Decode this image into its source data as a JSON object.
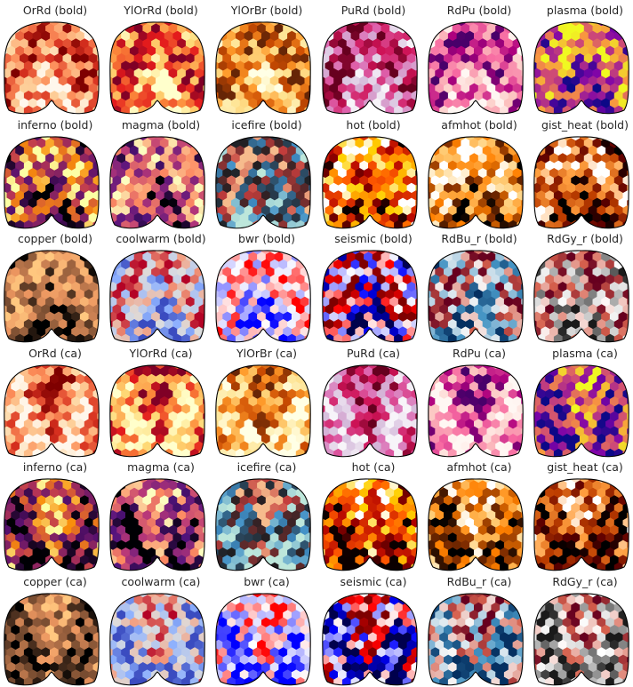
{
  "figure": {
    "panels": [
      {
        "title": "OrRd (bold)",
        "cmap": "OrRd"
      },
      {
        "title": "YlOrRd (bold)",
        "cmap": "YlOrRd"
      },
      {
        "title": "YlOrBr (bold)",
        "cmap": "YlOrBr"
      },
      {
        "title": "PuRd (bold)",
        "cmap": "PuRd"
      },
      {
        "title": "RdPu (bold)",
        "cmap": "RdPu"
      },
      {
        "title": "plasma (bold)",
        "cmap": "plasma"
      },
      {
        "title": "inferno (bold)",
        "cmap": "inferno"
      },
      {
        "title": "magma (bold)",
        "cmap": "magma"
      },
      {
        "title": "icefire (bold)",
        "cmap": "icefire"
      },
      {
        "title": "hot (bold)",
        "cmap": "hot"
      },
      {
        "title": "afmhot (bold)",
        "cmap": "afmhot"
      },
      {
        "title": "gist_heat (bold)",
        "cmap": "gist_heat"
      },
      {
        "title": "copper (bold)",
        "cmap": "copper"
      },
      {
        "title": "coolwarm (bold)",
        "cmap": "coolwarm"
      },
      {
        "title": "bwr (bold)",
        "cmap": "bwr"
      },
      {
        "title": "seismic (bold)",
        "cmap": "seismic"
      },
      {
        "title": "RdBu_r (bold)",
        "cmap": "RdBu_r"
      },
      {
        "title": "RdGy_r (bold)",
        "cmap": "RdGy_r"
      },
      {
        "title": "OrRd (ca)",
        "cmap": "OrRd"
      },
      {
        "title": "YlOrRd (ca)",
        "cmap": "YlOrRd"
      },
      {
        "title": "YlOrBr (ca)",
        "cmap": "YlOrBr"
      },
      {
        "title": "PuRd (ca)",
        "cmap": "PuRd"
      },
      {
        "title": "RdPu (ca)",
        "cmap": "RdPu"
      },
      {
        "title": "plasma (ca)",
        "cmap": "plasma"
      },
      {
        "title": "inferno (ca)",
        "cmap": "inferno"
      },
      {
        "title": "magma (ca)",
        "cmap": "magma"
      },
      {
        "title": "icefire (ca)",
        "cmap": "icefire"
      },
      {
        "title": "hot (ca)",
        "cmap": "hot"
      },
      {
        "title": "afmhot (ca)",
        "cmap": "afmhot"
      },
      {
        "title": "gist_heat (ca)",
        "cmap": "gist_heat"
      },
      {
        "title": "copper (ca)",
        "cmap": "copper"
      },
      {
        "title": "coolwarm (ca)",
        "cmap": "coolwarm"
      },
      {
        "title": "bwr (ca)",
        "cmap": "bwr"
      },
      {
        "title": "seismic (ca)",
        "cmap": "seismic"
      },
      {
        "title": "RdBu_r (ca)",
        "cmap": "RdBu_r"
      },
      {
        "title": "RdGy_r (ca)",
        "cmap": "RdGy_r"
      }
    ],
    "colormaps": {
      "OrRd": [
        "#fff7ec",
        "#fdd49e",
        "#fc8d59",
        "#d7301f",
        "#7f0000"
      ],
      "YlOrRd": [
        "#ffffcc",
        "#fed976",
        "#fd8d3c",
        "#e31a1c",
        "#800026"
      ],
      "YlOrBr": [
        "#ffffe5",
        "#fee391",
        "#fe9929",
        "#cc4c02",
        "#662506"
      ],
      "PuRd": [
        "#f7f4f9",
        "#d4b9da",
        "#df65b0",
        "#ce1256",
        "#67001f"
      ],
      "RdPu": [
        "#fff7f3",
        "#fcc5c0",
        "#f768a1",
        "#ae017e",
        "#49006a"
      ],
      "plasma": [
        "#0d0887",
        "#7e03a8",
        "#cc4778",
        "#f89540",
        "#f0f921"
      ],
      "inferno": [
        "#000004",
        "#57106e",
        "#bc3754",
        "#f98e09",
        "#fcffa4"
      ],
      "magma": [
        "#000004",
        "#51127c",
        "#b73779",
        "#fc8961",
        "#fcfdbf"
      ],
      "icefire": [
        "#bde7db",
        "#3f8ec6",
        "#1f1e21",
        "#c33d3c",
        "#f6bb8d"
      ],
      "hot": [
        "#0b0000",
        "#b00000",
        "#ff5800",
        "#ffd000",
        "#ffffff"
      ],
      "afmhot": [
        "#000000",
        "#7f2c00",
        "#ff8000",
        "#ffd27f",
        "#ffffff"
      ],
      "gist_heat": [
        "#000000",
        "#5f0000",
        "#bf3f00",
        "#ff9f3f",
        "#ffffff"
      ],
      "copper": [
        "#000000",
        "#4f3220",
        "#9e6440",
        "#ec9660",
        "#ffc77f"
      ],
      "coolwarm": [
        "#3b4cc0",
        "#8db0fe",
        "#dddddd",
        "#f49a7b",
        "#b40426"
      ],
      "bwr": [
        "#0000ff",
        "#8080ff",
        "#ffffff",
        "#ff8080",
        "#ff0000"
      ],
      "seismic": [
        "#00004c",
        "#0000ff",
        "#ffffff",
        "#ff0000",
        "#7f0000"
      ],
      "RdBu_r": [
        "#053061",
        "#4393c3",
        "#f7f7f7",
        "#d6604d",
        "#67001f"
      ],
      "RdGy_r": [
        "#1a1a1a",
        "#878787",
        "#ffffff",
        "#d6604d",
        "#67001f"
      ]
    }
  }
}
